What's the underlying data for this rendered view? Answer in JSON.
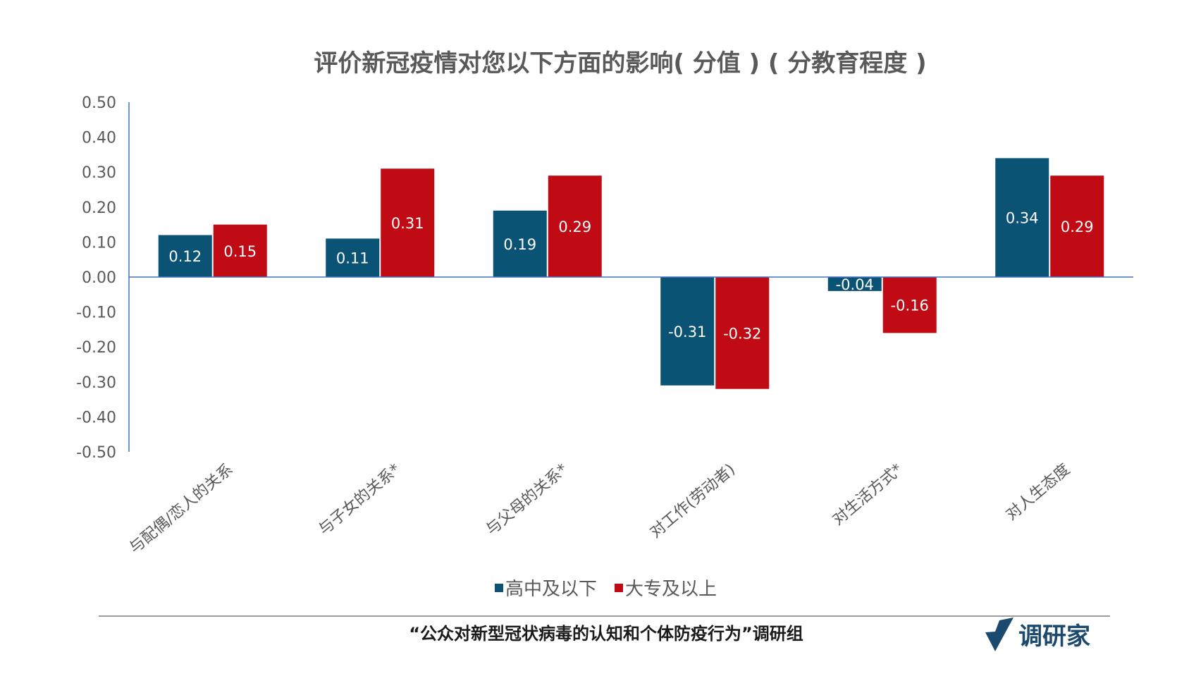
{
  "chart_data": {
    "type": "bar",
    "title": "评价新冠疫情对您以下方面的影响( 分值 ) ( 分教育程度 )",
    "categories": [
      "与配偶/恋人的关系",
      "与子女的关系*",
      "与父母的关系*",
      "对工作(劳动者)",
      "对生活方式*",
      "对人生态度"
    ],
    "series": [
      {
        "name": "高中及以下",
        "color": "#0b5375",
        "values": [
          0.12,
          0.11,
          0.19,
          -0.31,
          -0.04,
          0.34
        ],
        "labels": [
          "0.12",
          "0.11",
          "0.19",
          "-0.31",
          "-0.04",
          "0.34"
        ]
      },
      {
        "name": "大专及以上",
        "color": "#c00a14",
        "values": [
          0.15,
          0.31,
          0.29,
          -0.32,
          -0.16,
          0.29
        ],
        "labels": [
          "0.15",
          "0.31",
          "0.29",
          "-0.32",
          "-0.16",
          "0.29"
        ]
      }
    ],
    "ylim": [
      -0.5,
      0.5
    ],
    "yticks": [
      "0.50",
      "0.40",
      "0.30",
      "0.20",
      "0.10",
      "0.00",
      "-0.10",
      "-0.20",
      "-0.30",
      "-0.40",
      "-0.50"
    ],
    "grid": false,
    "legend": "bottom"
  },
  "footer": {
    "source": "“公众对新型冠状病毒的认知和个体防疫行为”调研组",
    "brand": "调研家"
  }
}
